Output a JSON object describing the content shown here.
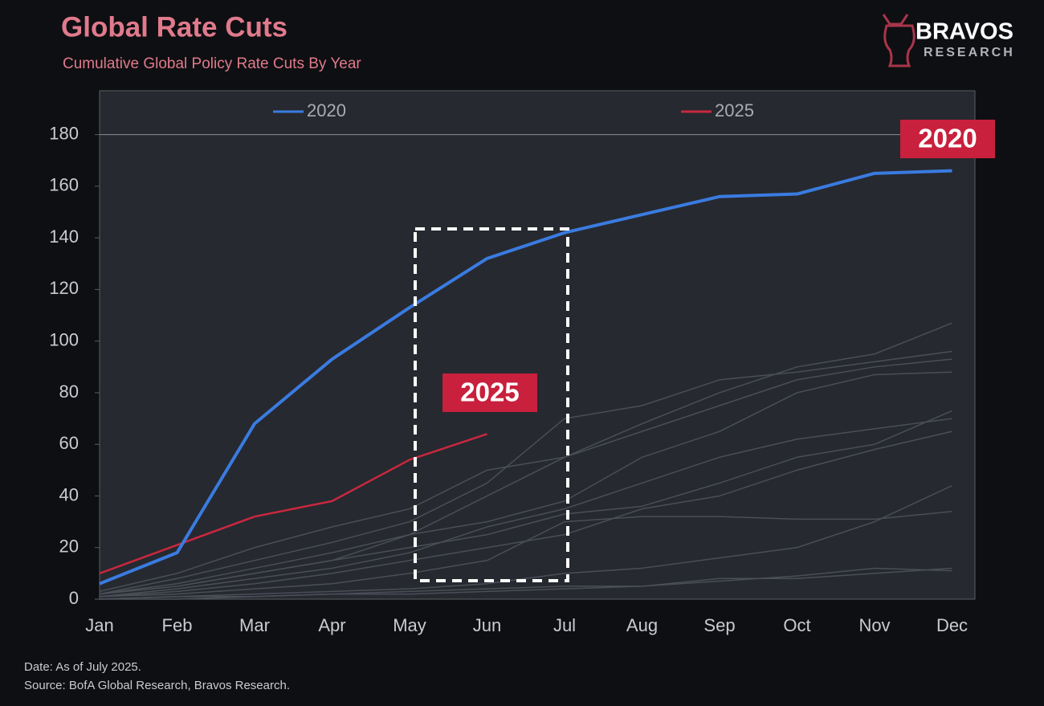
{
  "chart_data": {
    "type": "line",
    "title": "Global Rate Cuts",
    "subtitle": "Cumulative Global Policy Rate Cuts By Year",
    "brand": "BRAVOS",
    "brand_sub": "RESEARCH",
    "categories": [
      "Jan",
      "Feb",
      "Mar",
      "Apr",
      "May",
      "Jun",
      "Jul",
      "Aug",
      "Sep",
      "Oct",
      "Nov",
      "Dec"
    ],
    "series": [
      {
        "color": "#4a4e57",
        "values": [
          2,
          5,
          10,
          15,
          25,
          40,
          55,
          68,
          80,
          90,
          95,
          107
        ]
      },
      {
        "color": "#4a4e57",
        "values": [
          2,
          8,
          15,
          22,
          30,
          45,
          70,
          75,
          85,
          88,
          92,
          96
        ]
      },
      {
        "color": "#4a4e57",
        "values": [
          3,
          10,
          20,
          28,
          35,
          50,
          55,
          65,
          75,
          85,
          90,
          93
        ]
      },
      {
        "color": "#4a4e57",
        "values": [
          2,
          6,
          12,
          18,
          25,
          30,
          38,
          55,
          65,
          80,
          87,
          88
        ]
      },
      {
        "color": "#4a4e57",
        "values": [
          1,
          4,
          8,
          12,
          18,
          28,
          35,
          45,
          55,
          62,
          66,
          70
        ]
      },
      {
        "color": "#4a4e57",
        "values": [
          2,
          5,
          10,
          15,
          20,
          25,
          33,
          36,
          45,
          55,
          60,
          73
        ]
      },
      {
        "color": "#4a4e57",
        "values": [
          1,
          3,
          6,
          10,
          15,
          20,
          25,
          35,
          40,
          50,
          58,
          65
        ]
      },
      {
        "color": "#4a4e57",
        "values": [
          1,
          2,
          4,
          6,
          10,
          15,
          30,
          32,
          32,
          31,
          31,
          34
        ]
      },
      {
        "color": "#4a4e57",
        "values": [
          0,
          1,
          2,
          3,
          4,
          6,
          10,
          12,
          16,
          20,
          30,
          44
        ]
      },
      {
        "color": "#4a4e57",
        "values": [
          0,
          0,
          1,
          2,
          3,
          4,
          5,
          5,
          8,
          8,
          10,
          12
        ]
      },
      {
        "color": "#4a4e57",
        "values": [
          0,
          1,
          1,
          2,
          2,
          3,
          4,
          5,
          7,
          9,
          12,
          11
        ]
      },
      {
        "name": "2025",
        "color": "#c8283f",
        "values": [
          10,
          21,
          32,
          38,
          54,
          64,
          null,
          null,
          null,
          null,
          null,
          null
        ]
      },
      {
        "name": "2020",
        "color": "#3a7be0",
        "values": [
          6,
          18,
          68,
          93,
          113,
          132,
          142,
          149,
          156,
          157,
          165,
          166
        ]
      }
    ],
    "ylim": [
      0,
      197
    ],
    "yticks": [
      0,
      20,
      40,
      60,
      80,
      100,
      120,
      140,
      160,
      180
    ],
    "hline": 180,
    "annotations": [
      "2020",
      "2025"
    ],
    "notes": [
      "Date: As of July 2025.",
      "Source: BofA Global Research, Bravos Research."
    ]
  }
}
